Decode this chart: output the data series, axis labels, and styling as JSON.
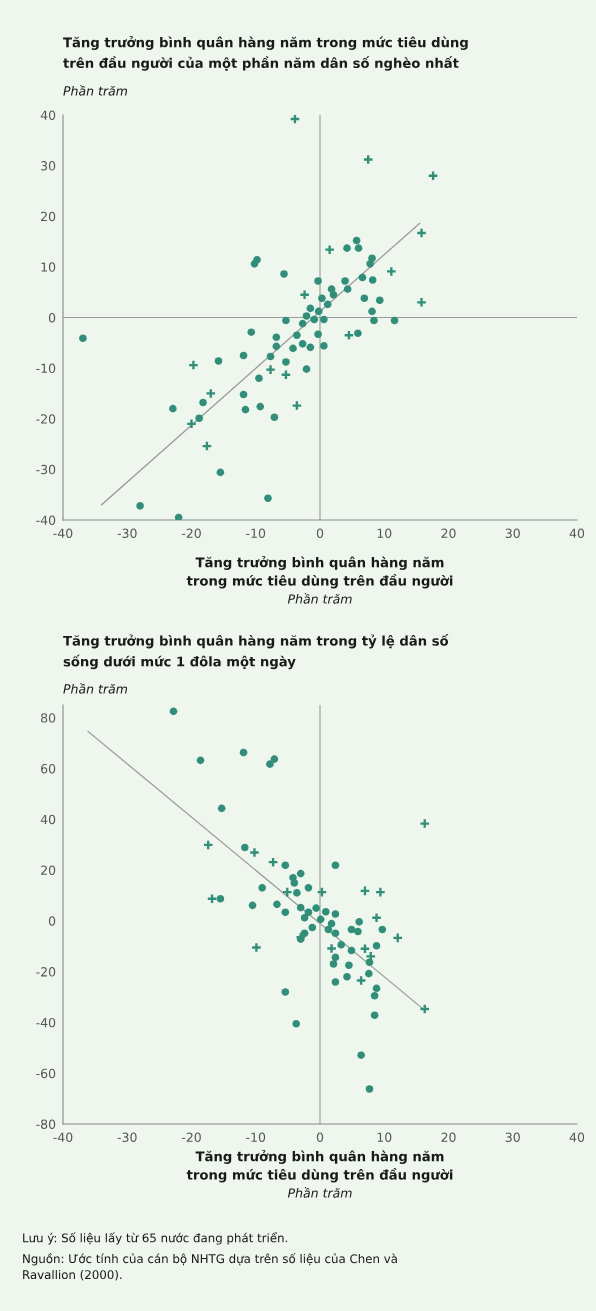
{
  "chart_data": [
    {
      "type": "scatter",
      "title": "Tăng trưởng bình quân hàng năm trong mức tiêu dùng\ntrên đầu người của một phần năm dân số nghèo nhất",
      "ylabel": "Phần trăm",
      "xlabel": "Tăng trưởng bình quân hàng năm\ntrong mức tiêu dùng trên đầu người\nPhần trăm",
      "xlim": [
        -40,
        40
      ],
      "xticks": [
        -40,
        -30,
        -20,
        -10,
        0,
        10,
        20,
        30,
        40
      ],
      "ylim": [
        -40,
        40
      ],
      "yticks": [
        -40,
        -30,
        -20,
        -10,
        0,
        10,
        20,
        30,
        40
      ],
      "ref_lines": [
        {
          "axis": "x",
          "value": 0,
          "color": "#9a9a9a"
        },
        {
          "axis": "y",
          "value": 0,
          "color": "#9a9a9a"
        }
      ],
      "series": [
        {
          "marker": "circle",
          "color": "#2f8f78",
          "x": [
            5.7,
            4.2,
            6.0,
            8.1,
            7.8,
            -9.8,
            -10.2,
            -5.6,
            -0.3,
            3.9,
            6.6,
            8.2,
            1.8,
            2.1,
            4.3,
            6.9,
            9.3,
            0.3,
            1.2,
            -1.5,
            -0.2,
            -2.1,
            -0.9,
            0.6,
            8.1,
            8.4,
            11.6,
            -5.3,
            -2.7,
            -36.9,
            -10.7,
            -6.8,
            -3.6,
            -0.3,
            5.9,
            -6.8,
            -4.2,
            -2.7,
            -1.5,
            0.6,
            -11.9,
            -7.7,
            -5.3,
            -15.8,
            -2.1,
            -9.5,
            -11.9,
            -18.2,
            -22.9,
            -11.6,
            -9.3,
            -7.1,
            -18.8,
            -15.5,
            -8.1,
            -28.0,
            -22.0
          ],
          "values": [
            15.2,
            13.7,
            13.7,
            11.7,
            10.6,
            11.4,
            10.6,
            8.6,
            7.2,
            7.2,
            7.9,
            7.4,
            5.6,
            4.5,
            5.6,
            3.8,
            3.4,
            3.8,
            2.6,
            1.8,
            1.2,
            0.3,
            -0.4,
            -0.4,
            1.2,
            -0.6,
            -0.6,
            -0.6,
            -1.2,
            -4.1,
            -2.9,
            -3.9,
            -3.5,
            -3.3,
            -3.1,
            -5.7,
            -6.1,
            -5.2,
            -5.9,
            -5.6,
            -7.5,
            -7.7,
            -8.8,
            -8.6,
            -10.2,
            -12.0,
            -15.2,
            -16.8,
            -18.0,
            -18.2,
            -17.6,
            -19.7,
            -19.9,
            -30.6,
            -35.7,
            -37.2,
            -39.5
          ]
        },
        {
          "marker": "cross",
          "color": "#2f8f78",
          "x": [
            -3.9,
            7.5,
            17.6,
            15.8,
            11.1,
            15.8,
            4.5,
            -19.7,
            -7.7,
            -5.3,
            -17.0,
            -3.6,
            -20.0,
            -17.6,
            1.5,
            -2.4
          ],
          "values": [
            39.2,
            31.2,
            28.0,
            16.7,
            9.1,
            3.0,
            -3.5,
            -9.4,
            -10.3,
            -11.3,
            -15.0,
            -17.4,
            -21.0,
            -25.4,
            13.4,
            4.5
          ]
        },
        {
          "type": "line",
          "color": "#9a9a9a",
          "x": [
            -34,
            15.5
          ],
          "values": [
            -37,
            18.6
          ]
        }
      ]
    },
    {
      "type": "scatter",
      "title": "Tăng trưởng bình quân hàng năm trong tỷ lệ dân số\nsống dưới mức 1 đôla một ngày",
      "ylabel": "Phần trăm",
      "xlabel": "Tăng trưởng bình quân hàng năm\ntrong mức tiêu dùng trên đầu người\nPhần trăm",
      "xlim": [
        -40,
        40
      ],
      "xticks": [
        -40,
        -30,
        -20,
        -10,
        0,
        10,
        20,
        30,
        40
      ],
      "ylim": [
        -80,
        85
      ],
      "yticks": [
        -80,
        -60,
        -40,
        -20,
        0,
        20,
        40,
        60,
        80
      ],
      "ref_lines": [
        {
          "axis": "x",
          "value": 0,
          "color": "#9a9a9a"
        }
      ],
      "series": [
        {
          "marker": "circle",
          "color": "#2f8f78",
          "x": [
            -22.8,
            -18.6,
            -11.9,
            -7.8,
            -7.1,
            -15.3,
            -11.7,
            -5.4,
            2.4,
            -3.0,
            -4.2,
            -4.0,
            -9.0,
            -1.8,
            -3.6,
            -15.5,
            -10.5,
            -6.7,
            -5.4,
            -3.0,
            -1.8,
            -0.6,
            0.9,
            2.4,
            -2.4,
            0.1,
            1.8,
            9.7,
            6.1,
            4.9,
            -1.2,
            1.3,
            2.4,
            -2.4,
            -3.0,
            5.9,
            3.3,
            4.9,
            8.8,
            2.4,
            2.1,
            4.5,
            7.7,
            4.2,
            7.6,
            2.4,
            8.8,
            8.5,
            -5.4,
            8.5,
            -3.7,
            6.4,
            7.7
          ],
          "values": [
            82.5,
            63.2,
            66.3,
            61.7,
            63.7,
            44.3,
            28.9,
            21.9,
            21.9,
            18.6,
            17.0,
            14.9,
            13.0,
            13.0,
            11.0,
            8.7,
            6.1,
            6.5,
            3.4,
            5.2,
            3.4,
            5.0,
            3.6,
            2.7,
            1.2,
            0.6,
            -1.1,
            -3.4,
            -0.4,
            -3.4,
            -2.6,
            -3.4,
            -4.9,
            -4.9,
            -7.2,
            -4.2,
            -9.4,
            -11.7,
            -9.8,
            -14.4,
            -17.0,
            -17.5,
            -16.3,
            -22.0,
            -20.8,
            -24.1,
            -26.6,
            -29.5,
            -28.0,
            -37.2,
            -40.5,
            -52.9,
            -66.2
          ]
        },
        {
          "marker": "cross",
          "color": "#2f8f78",
          "x": [
            16.3,
            -17.4,
            -10.2,
            -7.3,
            -5.1,
            0.3,
            7.0,
            9.4,
            -16.8,
            8.8,
            -3.0,
            12.1,
            -9.9,
            1.8,
            7.0,
            7.9,
            6.4,
            16.3
          ],
          "values": [
            38.3,
            29.9,
            26.9,
            23.1,
            11.3,
            11.3,
            11.8,
            11.3,
            8.7,
            1.2,
            -6.4,
            -6.7,
            -10.5,
            -10.9,
            -11.0,
            -14.0,
            -23.5,
            -34.7
          ]
        },
        {
          "type": "line",
          "color": "#9a9a9a",
          "x": [
            -36.1,
            16.0
          ],
          "values": [
            74.6,
            -34.6
          ]
        }
      ],
      "annotations": [
        "Lưu ý: Số liệu lấy từ 65 nước đang phát triển.",
        "Nguồn: Ước tính của cán bộ NHTG dựa trên số liệu của Chen và\nRavallion (2000)."
      ]
    }
  ]
}
